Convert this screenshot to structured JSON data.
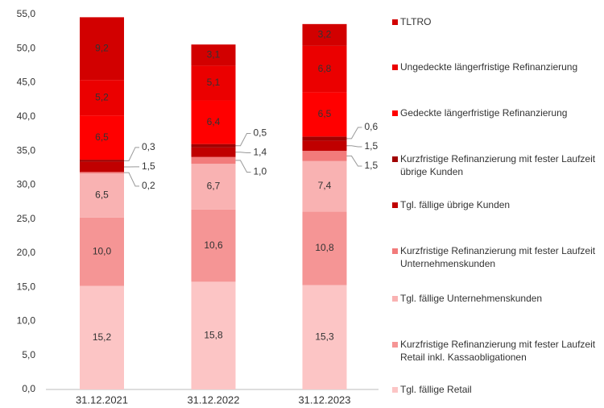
{
  "chart_data": {
    "type": "stacked_bar",
    "categories": [
      "31.12.2021",
      "31.12.2022",
      "31.12.2023"
    ],
    "series": [
      {
        "name": "Tgl. fällige Retail",
        "color": "#fcc5c5",
        "values": [
          15.2,
          15.8,
          15.3
        ],
        "value_labels": [
          "15,2",
          "15,8",
          "15,3"
        ]
      },
      {
        "name": "Kurzfristige Refinanzierung mit fester Laufzeit Retail inkl. Kassaobligationen",
        "color": "#f59595",
        "values": [
          10.0,
          10.6,
          10.8
        ],
        "value_labels": [
          "10,0",
          "10,6",
          "10,8"
        ]
      },
      {
        "name": "Tgl. fällige Unternehmenskunden",
        "color": "#f9b2b2",
        "values": [
          6.5,
          6.7,
          7.4
        ],
        "value_labels": [
          "6,5",
          "6,7",
          "7,4"
        ]
      },
      {
        "name": "Kurzfristige Refinanzierung mit fester Laufzeit Unternehmenskunden",
        "color": "#f27b7b",
        "values": [
          0.2,
          1.0,
          1.5
        ],
        "value_labels": [
          "0,2",
          "1,0",
          "1,5"
        ]
      },
      {
        "name": "Tgl. fällige übrige Kunden",
        "color": "#c00000",
        "values": [
          1.5,
          1.4,
          1.5
        ],
        "value_labels": [
          "1,5",
          "1,4",
          "1,5"
        ]
      },
      {
        "name": "Kurzfristige Refinanzierung mit fester Laufzeit übrige Kunden",
        "color": "#a00000",
        "values": [
          0.3,
          0.5,
          0.6
        ],
        "value_labels": [
          "0,3",
          "0,5",
          "0,6"
        ]
      },
      {
        "name": "Gedeckte längerfristige Refinanzierung",
        "color": "#ff0000",
        "values": [
          6.5,
          6.4,
          6.5
        ],
        "value_labels": [
          "6,5",
          "6,4",
          "6,5"
        ]
      },
      {
        "name": "Ungedeckte längerfristige Refinanzierung",
        "color": "#eb0000",
        "values": [
          5.2,
          5.1,
          6.8
        ],
        "value_labels": [
          "5,2",
          "5,1",
          "6,8"
        ]
      },
      {
        "name": "TLTRO",
        "color": "#d20000",
        "values": [
          9.2,
          3.1,
          3.2
        ],
        "value_labels": [
          "9,2",
          "3,1",
          "3,2"
        ]
      }
    ],
    "ylim": [
      0,
      55
    ],
    "yticks": [
      {
        "value": 0,
        "label": "0,0"
      },
      {
        "value": 5,
        "label": "5,0"
      },
      {
        "value": 10,
        "label": "10,0"
      },
      {
        "value": 15,
        "label": "15,0"
      },
      {
        "value": 20,
        "label": "20,0"
      },
      {
        "value": 25,
        "label": "25,0"
      },
      {
        "value": 30,
        "label": "30,0"
      },
      {
        "value": 35,
        "label": "35,0"
      },
      {
        "value": 40,
        "label": "40,0"
      },
      {
        "value": 45,
        "label": "45,0"
      },
      {
        "value": 50,
        "label": "50,0"
      },
      {
        "value": 55,
        "label": "55,0"
      }
    ],
    "legend": "right"
  }
}
